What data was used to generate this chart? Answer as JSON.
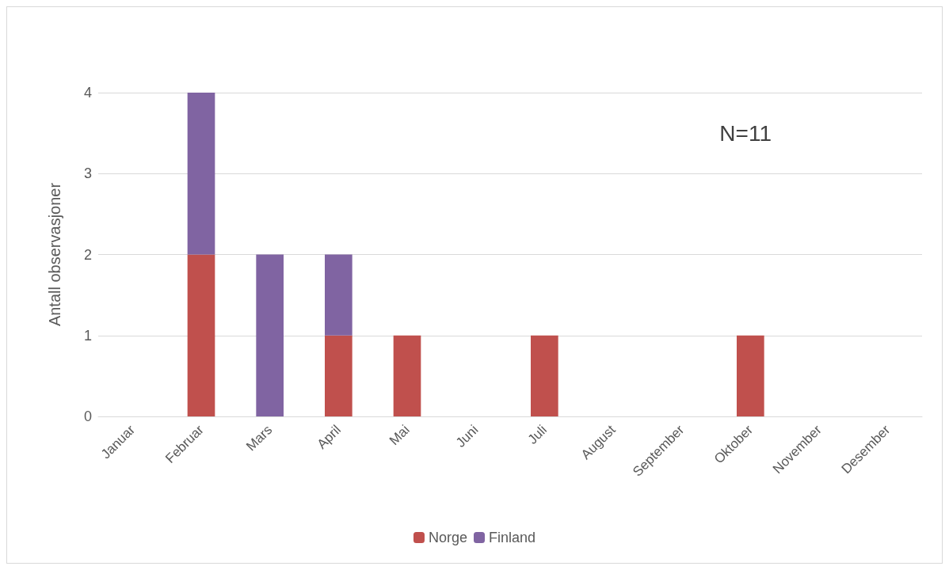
{
  "chart_data": {
    "type": "bar",
    "ylabel": "Antall observasjoner",
    "categories": [
      "Januar",
      "Februar",
      "Mars",
      "April",
      "Mai",
      "Juni",
      "Juli",
      "August",
      "September",
      "Oktober",
      "November",
      "Desember"
    ],
    "series": [
      {
        "name": "Norge",
        "color": "#c0504d",
        "values": [
          0,
          2,
          0,
          1,
          1,
          0,
          1,
          0,
          0,
          1,
          0,
          0
        ]
      },
      {
        "name": "Finland",
        "color": "#8064a2",
        "values": [
          0,
          2,
          2,
          1,
          0,
          0,
          0,
          0,
          0,
          0,
          0,
          0
        ]
      }
    ],
    "stacked": true,
    "ylim": [
      0,
      4
    ],
    "yticks": [
      0,
      1,
      2,
      3,
      4
    ],
    "grid": "y",
    "legend": "bottom",
    "annotations": [
      "N=11"
    ]
  }
}
